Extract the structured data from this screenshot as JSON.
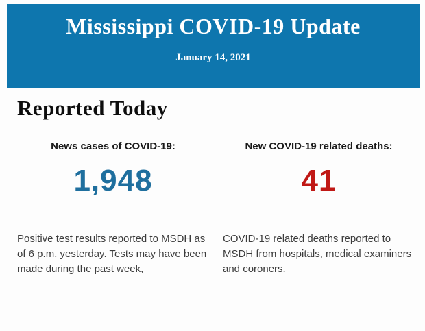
{
  "header": {
    "title": "Mississippi COVID-19 Update",
    "date": "January 14, 2021"
  },
  "body": {
    "section_title": "Reported Today",
    "columns": [
      {
        "label": "News cases of COVID-19:",
        "value": "1,948",
        "description": "Positive test results reported to MSDH as\nof 6 p.m. yesterday. Tests may have been\nmade during the past week,"
      },
      {
        "label": "New COVID-19 related deaths:",
        "value": "41",
        "description": "COVID-19 related deaths reported to\nMSDH from hospitals, medical examiners\nand coroners."
      }
    ]
  },
  "colors": {
    "banner_background": "#0e76ae",
    "banner_text": "#ffffff",
    "cases_value": "#1f6f9e",
    "deaths_value": "#c01815",
    "heading_text": "#0d0d0d",
    "body_text": "#3c3c3c"
  }
}
